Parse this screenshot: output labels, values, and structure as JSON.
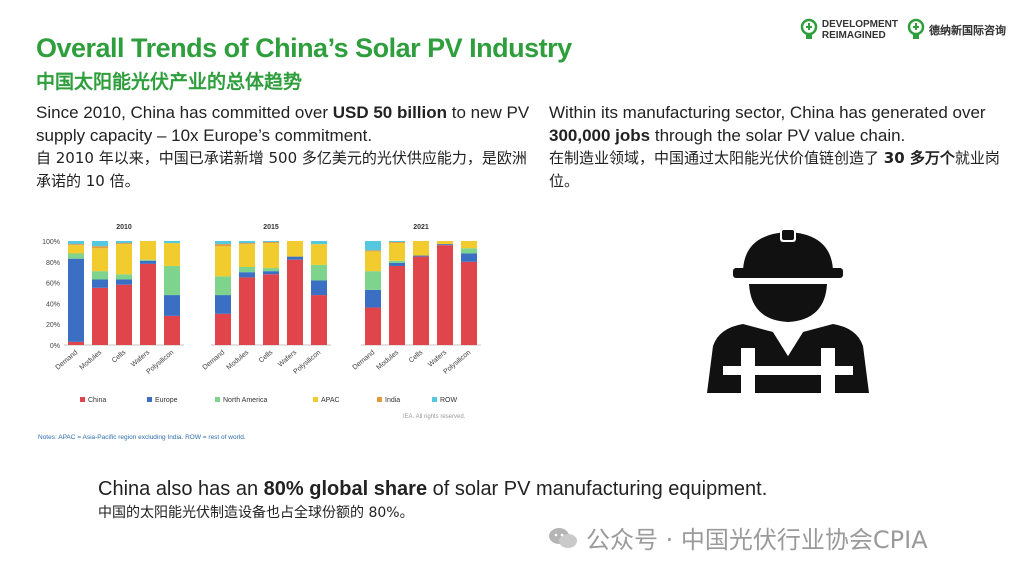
{
  "header": {
    "title_en": "Overall Trends of China’s Solar PV Industry",
    "title_cn": "中国太阳能光伏产业的总体趋势"
  },
  "logos": {
    "development_line1": "DEVELOPMENT",
    "development_line2": "REIMAGINED",
    "chinese_name": "德纳新国际咨询"
  },
  "left_paragraph": {
    "en_prefix": "Since 2010, China has committed over ",
    "en_bold": "USD 50 billion",
    "en_suffix": " to new PV supply capacity – 10x Europe’s commitment.",
    "cn": "自 2010 年以来，中国已承诺新增 500 多亿美元的光伏供应能力，是欧洲承诺的 10 倍。"
  },
  "right_paragraph": {
    "en_prefix": "Within its manufacturing sector, China has generated over ",
    "en_bold": "300,000 jobs",
    "en_suffix": " through the solar PV value chain.",
    "cn_prefix": "在制造业领域，中国通过太阳能光伏价值链创造了 ",
    "cn_bold": "30 多万个",
    "cn_suffix": "就业岗位。"
  },
  "bottom": {
    "en_prefix": "China also has an ",
    "en_bold": "80% global share",
    "en_suffix": " of solar PV manufacturing equipment.",
    "cn": "中国的太阳能光伏制造设备也占全球份额的 80%。"
  },
  "watermark": {
    "text": "公众号 · 中国光伏行业协会CPIA"
  },
  "chart_notes": "Notes: APAC = Asia-Pacific region excluding India. ROW = rest of world.",
  "chart_credit": "IEA. All rights reserved.",
  "icons": {
    "worker": "worker-hardhat-icon",
    "logo": "lightbulb-logo-icon",
    "wechat": "wechat-icon"
  },
  "colors": {
    "title_green": "#2f9e3d"
  },
  "chart_data": {
    "type": "bar",
    "stacked": true,
    "ylim": [
      0,
      100
    ],
    "yticks": [
      "0%",
      "20%",
      "40%",
      "60%",
      "80%",
      "100%"
    ],
    "categories": [
      "Demand",
      "Modules",
      "Cells",
      "Wafers",
      "Polysilicon"
    ],
    "series": [
      {
        "name": "China",
        "color": "#e0454b"
      },
      {
        "name": "Europe",
        "color": "#3b6fc4"
      },
      {
        "name": "North America",
        "color": "#7ed48c"
      },
      {
        "name": "APAC",
        "color": "#f2cc2e"
      },
      {
        "name": "India",
        "color": "#e39a3a"
      },
      {
        "name": "ROW",
        "color": "#55c8e0"
      }
    ],
    "panels": [
      {
        "title": "2010",
        "values": {
          "China": [
            3,
            55,
            58,
            78,
            28
          ],
          "Europe": [
            80,
            8,
            5,
            3,
            20
          ],
          "North America": [
            5,
            8,
            5,
            1,
            28
          ],
          "APAC": [
            8,
            22,
            29,
            18,
            22
          ],
          "India": [
            1,
            2,
            1,
            0,
            0
          ],
          "ROW": [
            3,
            5,
            2,
            0,
            2
          ]
        }
      },
      {
        "title": "2015",
        "values": {
          "China": [
            30,
            65,
            68,
            82,
            48
          ],
          "Europe": [
            18,
            5,
            3,
            3,
            14
          ],
          "North America": [
            18,
            5,
            3,
            0,
            15
          ],
          "APAC": [
            29,
            22,
            24,
            15,
            20
          ],
          "India": [
            2,
            1,
            1,
            0,
            0
          ],
          "ROW": [
            3,
            2,
            1,
            0,
            3
          ]
        }
      },
      {
        "title": "2021",
        "values": {
          "China": [
            36,
            76,
            85,
            96,
            80
          ],
          "Europe": [
            17,
            3,
            1,
            1,
            8
          ],
          "North America": [
            18,
            2,
            0,
            0,
            5
          ],
          "APAC": [
            19,
            17,
            14,
            3,
            7
          ],
          "India": [
            1,
            1,
            0,
            0,
            0
          ],
          "ROW": [
            9,
            1,
            0,
            0,
            0
          ]
        }
      }
    ]
  }
}
